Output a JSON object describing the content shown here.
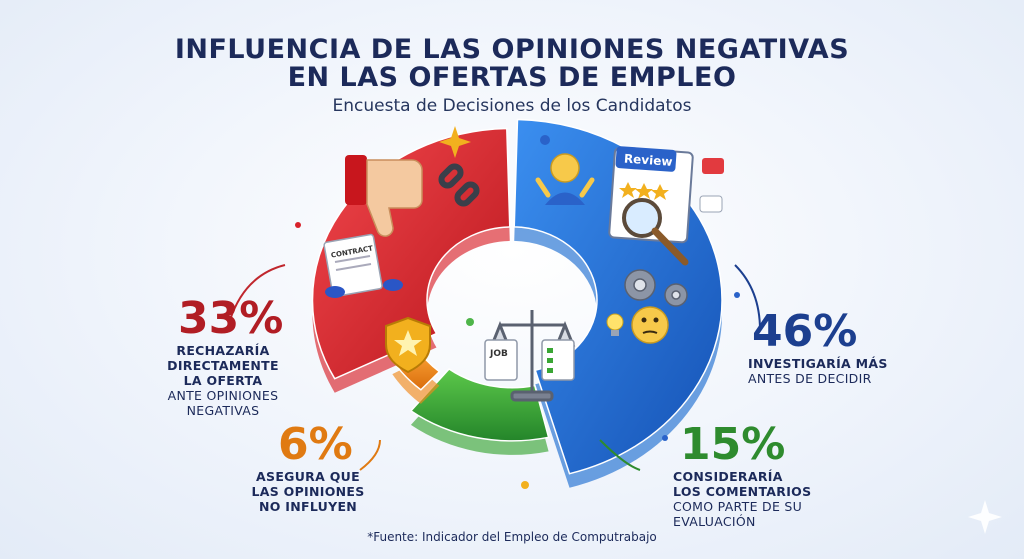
{
  "header": {
    "title_line1": "INFLUENCIA DE LAS OPINIONES NEGATIVAS",
    "title_line2": "EN LAS OFERTAS DE EMPLEO",
    "subtitle": "Encuesta de Decisiones de los Candidatos"
  },
  "chart_data": {
    "type": "pie",
    "title": "INFLUENCIA DE LAS OPINIONES NEGATIVAS EN LAS OFERTAS DE EMPLEO",
    "subtitle": "Encuesta de Decisiones de los Candidatos",
    "slices": [
      {
        "value": 46,
        "label_pct": "46%",
        "lines_bold": [
          "INVESTIGARÍA MÁS"
        ],
        "lines": [
          "ANTES DE DECIDIR"
        ],
        "color": "#1f6fd1"
      },
      {
        "value": 15,
        "label_pct": "15%",
        "lines_bold": [
          "CONSIDERARÍA",
          "LOS COMENTARIOS"
        ],
        "lines": [
          "COMO PARTE DE SU",
          "EVALUACIÓN"
        ],
        "color": "#3aa635"
      },
      {
        "value": 6,
        "label_pct": "6%",
        "lines_bold": [
          "ASEGURA QUE",
          "LAS OPINIONES",
          "NO INFLUYEN"
        ],
        "lines": [],
        "color": "#f0881c"
      },
      {
        "value": 33,
        "label_pct": "33%",
        "lines_bold": [
          "RECHAZARÍA",
          "DIRECTAMENTE",
          "LA OFERTA"
        ],
        "lines": [
          "ANTE OPINIONES",
          "NEGATIVAS"
        ],
        "color": "#d8222a"
      }
    ],
    "pct_colors": {
      "red": "#b11d24",
      "blue": "#1c3f8f",
      "green": "#2e8b2e",
      "orange": "#e07a12"
    },
    "icons": [
      "thumbs-down-icon",
      "broken-link-icon",
      "contract-icon",
      "shield-star-icon",
      "scale-icon",
      "review-icon",
      "person-icon",
      "gears-icon",
      "thinking-face-icon"
    ],
    "review_badge": "Review",
    "job_doc": "JOB",
    "contract_doc": "CONTRACT"
  },
  "footer": {
    "source": "*Fuente: Indicador del Empleo de Computrabajo"
  }
}
